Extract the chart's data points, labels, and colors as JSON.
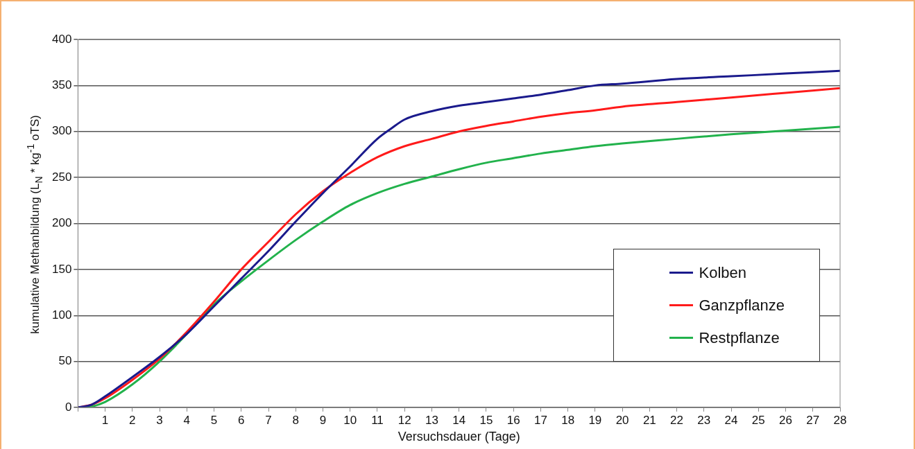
{
  "chart_data": {
    "type": "line",
    "xlabel": "Versuchsdauer (Tage)",
    "ylabel": "kumulative Methanbildung (L$_{N}$ * kg$^{-1}$ oTS)",
    "xlim": [
      0,
      28
    ],
    "xticks": [
      {
        "value": 0,
        "label": null
      },
      1,
      2,
      3,
      4,
      5,
      6,
      7,
      8,
      9,
      10,
      11,
      12,
      13,
      14,
      15,
      16,
      17,
      18,
      19,
      20,
      21,
      22,
      23,
      24,
      25,
      26,
      27,
      28
    ],
    "ylim": [
      0,
      400
    ],
    "yticks": [
      0,
      50,
      100,
      150,
      200,
      250,
      300,
      350,
      400
    ],
    "grid": "y",
    "legend": "bottom right",
    "marker": "none",
    "line_style": "solid",
    "series": [
      {
        "name": "Kolben",
        "color": "#1a1a8c",
        "x": [
          0,
          0.5,
          1,
          2,
          3,
          4,
          5,
          6,
          7,
          8,
          9,
          10,
          11,
          11.5,
          12,
          13,
          14,
          15,
          16,
          17,
          18,
          19,
          20,
          22,
          24,
          26,
          28
        ],
        "values": [
          0,
          3,
          12,
          33,
          55,
          80,
          110,
          140,
          170,
          202,
          233,
          262,
          292,
          303,
          313,
          322,
          328,
          332,
          336,
          340,
          345,
          350,
          352,
          357,
          360,
          363,
          366
        ]
      },
      {
        "name": "Ganzpflanze",
        "color": "#ff1a1a",
        "x": [
          0,
          0.5,
          1,
          2,
          3,
          4,
          5,
          6,
          7,
          8,
          9,
          10,
          11,
          12,
          13,
          14,
          15,
          16,
          17,
          18,
          19,
          20,
          22,
          24,
          26,
          28
        ],
        "values": [
          0,
          3,
          10,
          30,
          53,
          82,
          115,
          150,
          180,
          210,
          235,
          255,
          272,
          284,
          292,
          300,
          306,
          311,
          316,
          320,
          323,
          327,
          332,
          337,
          342,
          347
        ]
      },
      {
        "name": "Restpflanze",
        "color": "#22b24c",
        "x": [
          0,
          0.5,
          1,
          2,
          3,
          4,
          5,
          6,
          7,
          8,
          9,
          10,
          11,
          12,
          13,
          14,
          15,
          16,
          17,
          18,
          19,
          20,
          22,
          24,
          26,
          28
        ],
        "values": [
          0,
          1,
          6,
          25,
          50,
          80,
          112,
          137,
          160,
          182,
          202,
          220,
          233,
          243,
          251,
          259,
          266,
          271,
          276,
          280,
          284,
          287,
          292,
          297,
          301,
          305
        ]
      }
    ]
  }
}
